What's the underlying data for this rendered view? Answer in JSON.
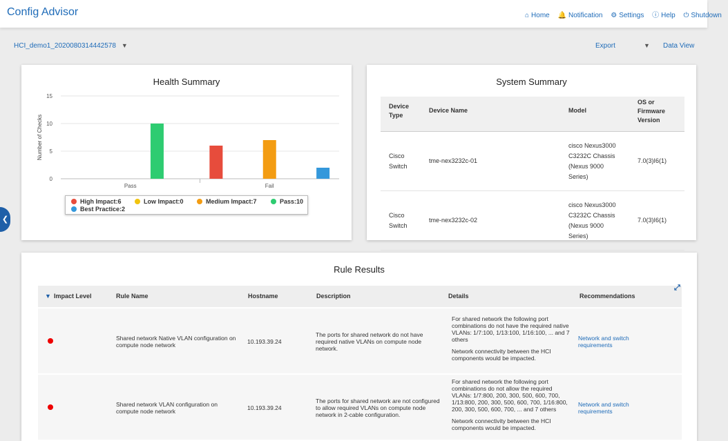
{
  "header": {
    "title": "Config Advisor",
    "nav": [
      {
        "icon": "home-icon",
        "glyph": "⌂",
        "label": "Home"
      },
      {
        "icon": "bell-icon",
        "glyph": "🔔",
        "label": "Notification"
      },
      {
        "icon": "gear-icon",
        "glyph": "⚙",
        "label": "Settings"
      },
      {
        "icon": "info-icon",
        "glyph": "ⓘ",
        "label": "Help"
      },
      {
        "icon": "power-icon",
        "glyph": "⏻",
        "label": "Shutdown"
      }
    ]
  },
  "subbar": {
    "cluster": "HCI_demo1_2020080314442578",
    "export": "Export",
    "data_view": "Data View"
  },
  "health": {
    "title": "Health Summary",
    "legend": [
      {
        "label": "High Impact:6",
        "color": "#e74c3c"
      },
      {
        "label": "Low Impact:0",
        "color": "#f1c40f"
      },
      {
        "label": "Medium Impact:7",
        "color": "#f39c12"
      },
      {
        "label": "Pass:10",
        "color": "#2ecc71"
      },
      {
        "label": "Best Practice:2",
        "color": "#3498db"
      }
    ]
  },
  "chart_data": {
    "type": "bar",
    "categories": [
      "Pass",
      "Fail"
    ],
    "series": [
      {
        "name": "High Impact",
        "values": [
          0,
          6
        ],
        "color": "#e74c3c"
      },
      {
        "name": "Low Impact",
        "values": [
          0,
          0
        ],
        "color": "#f1c40f"
      },
      {
        "name": "Medium Impact",
        "values": [
          0,
          7
        ],
        "color": "#f39c12"
      },
      {
        "name": "Pass",
        "values": [
          10,
          0
        ],
        "color": "#2ecc71"
      },
      {
        "name": "Best Practice",
        "values": [
          0,
          2
        ],
        "color": "#3498db"
      }
    ],
    "ylabel": "Number of Checks",
    "ylim": [
      0,
      15
    ],
    "yticks": [
      "0",
      "5",
      "10",
      "15"
    ],
    "grid": true,
    "legend_position": "bottom"
  },
  "system": {
    "title": "System Summary",
    "columns": {
      "device_type": "Device Type",
      "device_name": "Device Name",
      "model": "Model",
      "os": "OS or Firmware Version"
    },
    "rows": [
      {
        "device_type": "Cisco Switch",
        "device_name": "tme-nex3232c-01",
        "model": "cisco Nexus3000 C3232C Chassis (Nexus 9000 Series)",
        "os": "7.0(3)I6(1)"
      },
      {
        "device_type": "Cisco Switch",
        "device_name": "tme-nex3232c-02",
        "model": "cisco Nexus3000 C3232C Chassis (Nexus 9000 Series)",
        "os": "7.0(3)I6(1)"
      }
    ]
  },
  "rules": {
    "title": "Rule Results",
    "columns": {
      "impact": "Impact Level",
      "rule": "Rule Name",
      "host": "Hostname",
      "desc": "Description",
      "details": "Details",
      "rec": "Recommendations"
    },
    "rows": [
      {
        "impact_color": "#e00000",
        "rule": "Shared network Native VLAN configuration on compute node network",
        "host": "10.193.39.24",
        "desc": "The ports for shared network do not have required native VLANs on compute node network.",
        "details": "For shared network the following port combinations do not have the required native VLANs: 1/7:100, 1/13:100, 1/16:100, ... and 7 others",
        "details2": "Network connectivity between the HCI components would be impacted.",
        "rec": "Network and switch requirements"
      },
      {
        "impact_color": "#e00000",
        "rule": "Shared network VLAN configuration on compute node network",
        "host": "10.193.39.24",
        "desc": "The ports for shared network are not configured to allow required VLANs on compute node network in 2-cable configuration.",
        "details": "For shared network the following port combinations do not allow the required VLANs: 1/7:800, 200, 300, 500, 600, 700, 1/13:800, 200, 300, 500, 600, 700, 1/16:800, 200, 300, 500, 600, 700, ... and 7 others",
        "details2": "Network connectivity between the HCI components would be impacted.",
        "rec": "Network and switch requirements"
      }
    ]
  }
}
